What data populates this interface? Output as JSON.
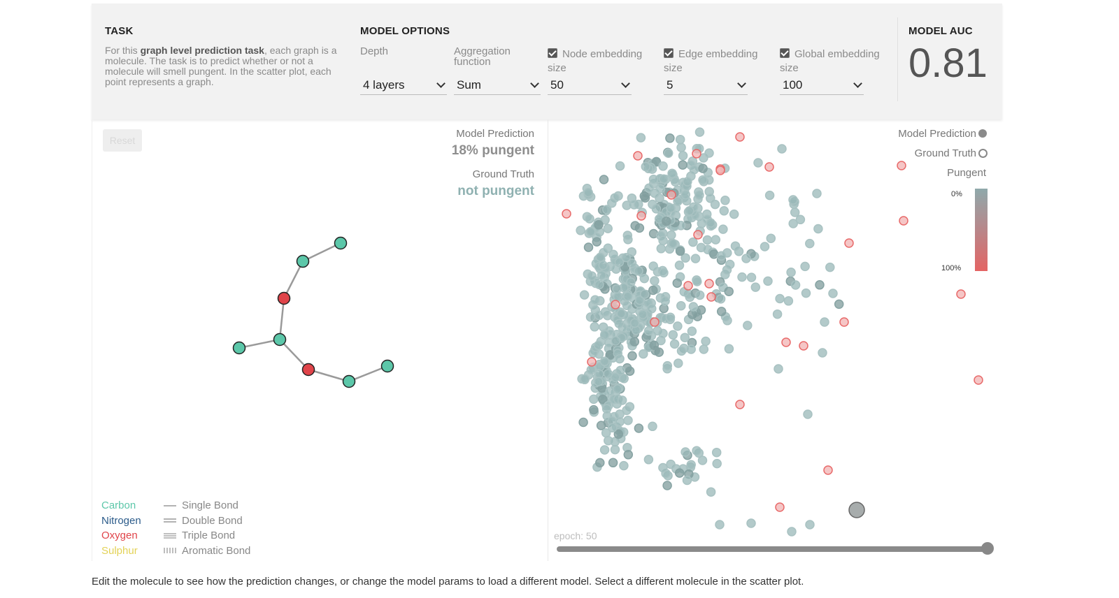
{
  "task": {
    "title": "TASK",
    "text_pre": "For this ",
    "text_bold": "graph level prediction task",
    "text_post": ", each graph is a molecule. The task is to predict whether or not a molecule will smell pungent. In the scatter plot, each point represents a graph."
  },
  "model_options": {
    "title": "MODEL OPTIONS",
    "depth": {
      "label": "Depth",
      "value": "4 layers"
    },
    "aggregation": {
      "label": "Aggregation function",
      "value": "Sum"
    },
    "node_embedding": {
      "label": "Node embedding size",
      "value": "50",
      "checked": true
    },
    "edge_embedding": {
      "label": "Edge embedding size",
      "value": "5",
      "checked": true
    },
    "global_embedding": {
      "label": "Global embedding size",
      "value": "100",
      "checked": true
    }
  },
  "model_auc": {
    "title": "MODEL AUC",
    "value": "0.81"
  },
  "graph_panel": {
    "reset_label": "Reset",
    "prediction_label": "Model Prediction",
    "prediction_value": "18% pungent",
    "ground_truth_label": "Ground Truth",
    "ground_truth_value": "not pungent",
    "atom_legend": [
      {
        "name": "Carbon",
        "color": "#5cc7a9"
      },
      {
        "name": "Nitrogen",
        "color": "#2b5b8a"
      },
      {
        "name": "Oxygen",
        "color": "#e0444a"
      },
      {
        "name": "Sulphur",
        "color": "#e3d257"
      }
    ],
    "bond_legend": [
      "Single Bond",
      "Double Bond",
      "Triple Bond",
      "Aromatic Bond"
    ],
    "molecule": {
      "atoms": [
        {
          "id": "c1",
          "element": "Carbon"
        },
        {
          "id": "c2",
          "element": "Carbon"
        },
        {
          "id": "o1",
          "element": "Oxygen"
        },
        {
          "id": "c3",
          "element": "Carbon"
        },
        {
          "id": "c4",
          "element": "Carbon"
        },
        {
          "id": "o2",
          "element": "Oxygen"
        },
        {
          "id": "c5",
          "element": "Carbon"
        },
        {
          "id": "c6",
          "element": "Carbon"
        }
      ],
      "bonds": [
        [
          "c1",
          "c2"
        ],
        [
          "c2",
          "o1"
        ],
        [
          "o1",
          "c3"
        ],
        [
          "c3",
          "c4"
        ],
        [
          "c3",
          "o2"
        ],
        [
          "o2",
          "c5"
        ],
        [
          "c5",
          "c6"
        ]
      ]
    }
  },
  "scatter": {
    "legend_prediction": "Model Prediction",
    "legend_ground_truth": "Ground Truth",
    "legend_pungent": "Pungent",
    "scale_min": "0%",
    "scale_max": "100%",
    "epoch_label": "epoch: 50",
    "epoch": 50
  },
  "colors": {
    "carbon": "#5cc7a9",
    "oxygen": "#e0444a",
    "point": "#9ab8b8",
    "point_dark": "#7f9c9c",
    "pungent": "#e86a6a"
  },
  "caption": "Edit the molecule to see how the prediction changes, or change the model params to load a different model. Select a different molecule in the scatter plot."
}
